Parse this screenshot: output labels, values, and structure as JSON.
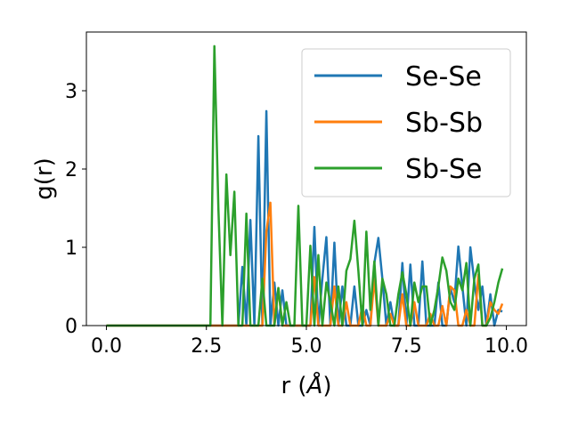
{
  "chart_data": {
    "type": "line",
    "xlabel": "r (",
    "xlabel_unit": "Å",
    "xlabel_close": ")",
    "ylabel": "g(r)",
    "xlim": [
      -0.5,
      10.5
    ],
    "ylim": [
      0,
      3.75
    ],
    "xticks": [
      0.0,
      2.5,
      5.0,
      7.5,
      10.0
    ],
    "xtick_labels": [
      "0.0",
      "2.5",
      "5.0",
      "7.5",
      "10.0"
    ],
    "yticks": [
      0,
      1,
      2,
      3
    ],
    "ytick_labels": [
      "0",
      "1",
      "2",
      "3"
    ],
    "grid": false,
    "legend_position": "upper-right",
    "series": [
      {
        "name": "Se-Se",
        "color": "#1f77b4",
        "x": [
          0.0,
          2.5,
          3.0,
          3.2,
          3.3,
          3.4,
          3.5,
          3.6,
          3.7,
          3.8,
          3.9,
          4.0,
          4.1,
          4.2,
          4.3,
          4.4,
          4.5,
          4.6,
          4.7,
          4.8,
          4.9,
          5.0,
          5.1,
          5.2,
          5.3,
          5.4,
          5.5,
          5.6,
          5.7,
          5.8,
          5.9,
          6.0,
          6.1,
          6.2,
          6.3,
          6.4,
          6.5,
          6.6,
          6.7,
          6.8,
          6.9,
          7.0,
          7.1,
          7.2,
          7.3,
          7.4,
          7.5,
          7.6,
          7.7,
          7.8,
          7.9,
          8.0,
          8.1,
          8.2,
          8.3,
          8.4,
          8.5,
          8.6,
          8.7,
          8.8,
          8.9,
          9.0,
          9.1,
          9.2,
          9.3,
          9.4,
          9.5,
          9.6,
          9.7,
          9.8,
          9.9
        ],
        "y": [
          0.0,
          0.0,
          0.0,
          0.0,
          0.0,
          0.75,
          0.0,
          1.35,
          0.0,
          2.42,
          0.0,
          2.74,
          0.0,
          0.55,
          0.0,
          0.45,
          0.0,
          0.0,
          0.0,
          0.0,
          0.0,
          0.0,
          0.0,
          1.26,
          0.0,
          0.6,
          1.13,
          0.0,
          1.06,
          0.0,
          0.5,
          0.0,
          0.0,
          0.5,
          0.0,
          0.0,
          0.2,
          0.0,
          0.8,
          1.12,
          0.6,
          0.0,
          0.3,
          0.0,
          0.0,
          0.8,
          0.0,
          0.78,
          0.0,
          0.0,
          0.82,
          0.0,
          0.0,
          0.0,
          0.55,
          0.0,
          0.0,
          0.48,
          0.3,
          1.01,
          0.5,
          0.0,
          1.0,
          0.55,
          0.2,
          0.5,
          0.0,
          0.4,
          0.0,
          0.2,
          0.18
        ]
      },
      {
        "name": "Sb-Sb",
        "color": "#ff7f0e",
        "x": [
          0.0,
          3.5,
          3.8,
          3.9,
          4.0,
          4.1,
          4.2,
          4.3,
          4.4,
          4.5,
          4.6,
          4.7,
          4.8,
          4.9,
          5.0,
          5.1,
          5.2,
          5.3,
          5.4,
          5.5,
          5.6,
          5.7,
          5.8,
          5.9,
          6.0,
          6.1,
          6.2,
          6.3,
          6.4,
          6.5,
          6.6,
          6.7,
          6.8,
          6.9,
          7.0,
          7.1,
          7.2,
          7.3,
          7.4,
          7.5,
          7.6,
          7.7,
          7.8,
          7.9,
          8.0,
          8.1,
          8.2,
          8.3,
          8.4,
          8.5,
          8.6,
          8.7,
          8.8,
          8.9,
          9.0,
          9.1,
          9.2,
          9.3,
          9.4,
          9.5,
          9.6,
          9.7,
          9.8,
          9.9
        ],
        "y": [
          0.0,
          0.0,
          0.0,
          0.0,
          1.2,
          1.57,
          0.0,
          0.48,
          0.0,
          0.0,
          0.0,
          0.0,
          0.0,
          0.0,
          0.0,
          0.0,
          0.62,
          0.0,
          0.0,
          0.0,
          0.0,
          0.5,
          0.0,
          0.0,
          0.3,
          0.0,
          0.0,
          0.0,
          0.25,
          0.0,
          0.0,
          0.6,
          0.0,
          0.0,
          0.0,
          0.15,
          0.0,
          0.0,
          0.4,
          0.0,
          0.0,
          0.3,
          0.0,
          0.0,
          0.0,
          0.15,
          0.0,
          0.0,
          0.25,
          0.0,
          0.5,
          0.45,
          0.0,
          0.0,
          0.2,
          0.0,
          0.0,
          0.65,
          0.0,
          0.0,
          0.3,
          0.2,
          0.15,
          0.28
        ]
      },
      {
        "name": "Sb-Se",
        "color": "#2ca02c",
        "x": [
          0.0,
          2.6,
          2.7,
          2.8,
          2.9,
          3.0,
          3.1,
          3.2,
          3.3,
          3.4,
          3.5,
          3.6,
          3.7,
          3.8,
          3.9,
          4.0,
          4.1,
          4.2,
          4.3,
          4.4,
          4.5,
          4.6,
          4.7,
          4.8,
          4.9,
          5.0,
          5.1,
          5.2,
          5.3,
          5.4,
          5.5,
          5.6,
          5.7,
          5.8,
          5.9,
          6.0,
          6.1,
          6.2,
          6.3,
          6.4,
          6.5,
          6.6,
          6.7,
          6.8,
          6.9,
          7.0,
          7.1,
          7.2,
          7.3,
          7.4,
          7.5,
          7.6,
          7.7,
          7.8,
          7.9,
          8.0,
          8.1,
          8.2,
          8.3,
          8.4,
          8.5,
          8.6,
          8.7,
          8.8,
          8.9,
          9.0,
          9.1,
          9.2,
          9.3,
          9.4,
          9.5,
          9.6,
          9.7,
          9.8,
          9.9
        ],
        "y": [
          0.0,
          0.0,
          3.57,
          1.5,
          0.0,
          1.93,
          0.9,
          1.71,
          0.0,
          0.0,
          1.43,
          0.0,
          0.0,
          0.0,
          0.6,
          0.0,
          0.0,
          0.0,
          0.48,
          0.0,
          0.3,
          0.0,
          0.0,
          1.53,
          0.0,
          0.0,
          1.02,
          0.0,
          0.9,
          0.0,
          0.55,
          0.3,
          0.0,
          0.5,
          0.0,
          0.7,
          0.85,
          1.34,
          0.7,
          0.0,
          1.2,
          0.2,
          0.82,
          0.0,
          0.6,
          0.4,
          0.0,
          0.0,
          0.4,
          0.68,
          0.4,
          0.0,
          0.55,
          0.3,
          0.5,
          0.5,
          0.0,
          0.2,
          0.5,
          0.87,
          0.7,
          0.3,
          0.2,
          0.6,
          0.45,
          0.8,
          0.0,
          0.6,
          0.78,
          0.0,
          0.0,
          0.1,
          0.3,
          0.55,
          0.73
        ]
      }
    ]
  }
}
